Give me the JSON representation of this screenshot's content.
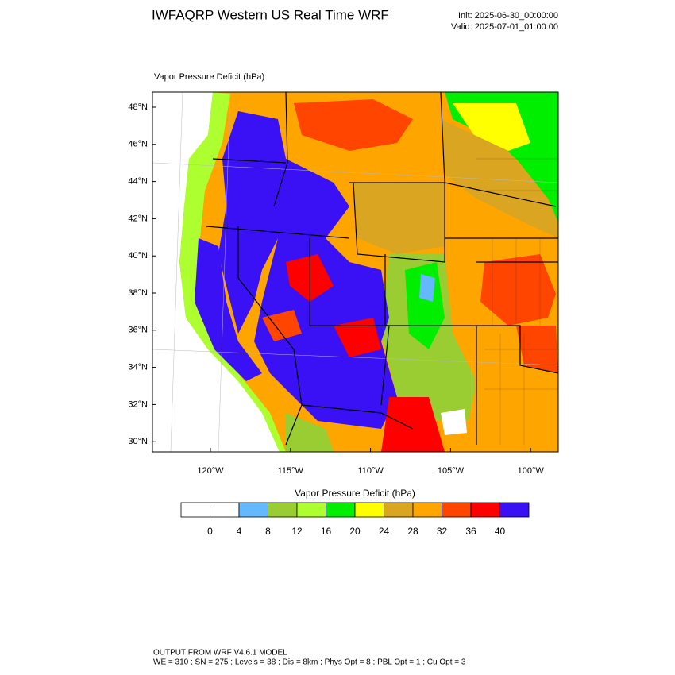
{
  "header": {
    "title": "IWFAQRP Western US Real Time WRF",
    "init": "Init: 2025-06-30_00:00:00",
    "valid": "Valid: 2025-07-01_01:00:00"
  },
  "map": {
    "title": "Vapor Pressure Deficit   (hPa)",
    "lat_labels": [
      "48°N",
      "46°N",
      "44°N",
      "42°N",
      "40°N",
      "38°N",
      "36°N",
      "34°N",
      "32°N",
      "30°N"
    ],
    "lon_labels": [
      "120°W",
      "115°W",
      "110°W",
      "105°W",
      "100°W"
    ]
  },
  "colorbar": {
    "title": "Vapor Pressure Deficit  (hPa)",
    "levels": [
      0,
      4,
      8,
      12,
      16,
      20,
      24,
      28,
      32,
      36,
      40
    ],
    "colors": [
      "#ffffff",
      "#ffffff",
      "#63b8ff",
      "#9acd32",
      "#adff2f",
      "#00ee00",
      "#ffff00",
      "#daa520",
      "#ffa500",
      "#ff4500",
      "#ff0000",
      "#3a10f5"
    ]
  },
  "footer": {
    "line1": "OUTPUT FROM WRF V4.6.1 MODEL",
    "line2": "WE = 310 ; SN = 275 ; Levels = 38 ; Dis = 8km ; Phys Opt = 8 ; PBL Opt = 1 ; Cu Opt = 3"
  }
}
